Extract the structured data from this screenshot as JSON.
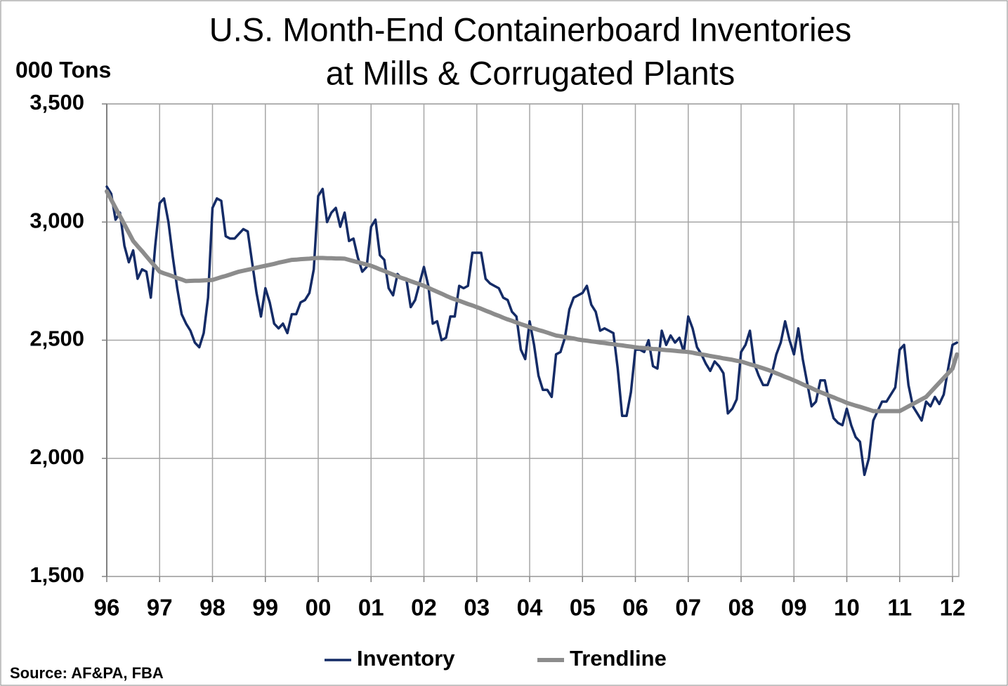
{
  "chart_data": {
    "type": "line",
    "title": [
      "U.S. Month-End Containerboard Inventories",
      "at Mills & Corrugated Plants"
    ],
    "y_label": "000 Tons",
    "source": "Source: AF&PA, FBA",
    "categories": [
      "96",
      null,
      null,
      null,
      null,
      null,
      null,
      null,
      null,
      null,
      null,
      null,
      "97",
      null,
      null,
      null,
      null,
      null,
      null,
      null,
      null,
      null,
      null,
      null,
      "98",
      null,
      null,
      null,
      null,
      null,
      null,
      null,
      null,
      null,
      null,
      null,
      "99",
      null,
      null,
      null,
      null,
      null,
      null,
      null,
      null,
      null,
      null,
      null,
      "00",
      null,
      null,
      null,
      null,
      null,
      null,
      null,
      null,
      null,
      null,
      null,
      "01",
      null,
      null,
      null,
      null,
      null,
      null,
      null,
      null,
      null,
      null,
      null,
      "02",
      null,
      null,
      null,
      null,
      null,
      null,
      null,
      null,
      null,
      null,
      null,
      "03",
      null,
      null,
      null,
      null,
      null,
      null,
      null,
      null,
      null,
      null,
      null,
      "04",
      null,
      null,
      null,
      null,
      null,
      null,
      null,
      null,
      null,
      null,
      null,
      "05",
      null,
      null,
      null,
      null,
      null,
      null,
      null,
      null,
      null,
      null,
      null,
      "06",
      null,
      null,
      null,
      null,
      null,
      null,
      null,
      null,
      null,
      null,
      null,
      "07",
      null,
      null,
      null,
      null,
      null,
      null,
      null,
      null,
      null,
      null,
      null,
      "08",
      null,
      null,
      null,
      null,
      null,
      null,
      null,
      null,
      null,
      null,
      null,
      "09",
      null,
      null,
      null,
      null,
      null,
      null,
      null,
      null,
      null,
      null,
      null,
      "10",
      null,
      null,
      null,
      null,
      null,
      null,
      null,
      null,
      null,
      null,
      null,
      "11",
      null,
      null,
      null,
      null,
      null,
      null,
      null,
      null,
      null,
      null,
      null,
      "12",
      null
    ],
    "series": [
      {
        "name": "Inventory",
        "color": "#142b66",
        "width": 3.5,
        "values": [
          3150,
          3120,
          3010,
          3040,
          2900,
          2830,
          2880,
          2760,
          2800,
          2790,
          2680,
          2900,
          3080,
          3100,
          3000,
          2850,
          2720,
          2610,
          2570,
          2540,
          2490,
          2470,
          2530,
          2680,
          3060,
          3100,
          3090,
          2940,
          2930,
          2930,
          2950,
          2970,
          2960,
          2830,
          2700,
          2600,
          2720,
          2660,
          2570,
          2550,
          2570,
          2530,
          2610,
          2610,
          2660,
          2670,
          2700,
          2800,
          3110,
          3140,
          3000,
          3040,
          3060,
          2980,
          3040,
          2920,
          2930,
          2850,
          2790,
          2810,
          2980,
          3010,
          2860,
          2840,
          2720,
          2690,
          2780,
          2760,
          2760,
          2640,
          2670,
          2740,
          2810,
          2730,
          2570,
          2580,
          2500,
          2510,
          2600,
          2600,
          2730,
          2720,
          2730,
          2870,
          2870,
          2870,
          2760,
          2740,
          2730,
          2720,
          2680,
          2670,
          2620,
          2600,
          2460,
          2420,
          2580,
          2480,
          2350,
          2290,
          2290,
          2260,
          2440,
          2450,
          2510,
          2630,
          2680,
          2690,
          2700,
          2730,
          2650,
          2620,
          2540,
          2550,
          2540,
          2530,
          2380,
          2180,
          2180,
          2280,
          2460,
          2460,
          2450,
          2500,
          2390,
          2380,
          2540,
          2480,
          2520,
          2490,
          2510,
          2450,
          2600,
          2550,
          2470,
          2440,
          2400,
          2370,
          2410,
          2390,
          2360,
          2190,
          2210,
          2250,
          2450,
          2480,
          2540,
          2400,
          2350,
          2310,
          2310,
          2360,
          2440,
          2490,
          2580,
          2500,
          2440,
          2550,
          2420,
          2320,
          2220,
          2240,
          2330,
          2330,
          2240,
          2170,
          2150,
          2140,
          2210,
          2140,
          2090,
          2070,
          1930,
          2000,
          2160,
          2200,
          2240,
          2240,
          2270,
          2300,
          2460,
          2480,
          2310,
          2220,
          2190,
          2160,
          2240,
          2220,
          2260,
          2230,
          2270,
          2380,
          2480,
          2490
        ]
      },
      {
        "name": "Trendline",
        "color": "#8c8c8c",
        "width": 6,
        "values": [
          3130,
          3095,
          3060,
          3025,
          2990,
          2955,
          2920,
          2898,
          2877,
          2855,
          2833,
          2812,
          2790,
          2783,
          2777,
          2770,
          2763,
          2757,
          2750,
          2751,
          2752,
          2752,
          2753,
          2754,
          2755,
          2761,
          2767,
          2772,
          2778,
          2784,
          2790,
          2794,
          2798,
          2802,
          2807,
          2811,
          2815,
          2819,
          2823,
          2828,
          2832,
          2836,
          2840,
          2841,
          2843,
          2844,
          2845,
          2847,
          2848,
          2848,
          2847,
          2847,
          2846,
          2846,
          2845,
          2840,
          2835,
          2830,
          2825,
          2820,
          2815,
          2808,
          2800,
          2793,
          2785,
          2778,
          2770,
          2763,
          2757,
          2750,
          2743,
          2737,
          2730,
          2722,
          2713,
          2705,
          2697,
          2688,
          2680,
          2673,
          2667,
          2660,
          2653,
          2647,
          2640,
          2633,
          2625,
          2618,
          2610,
          2603,
          2595,
          2588,
          2582,
          2575,
          2568,
          2562,
          2555,
          2549,
          2543,
          2538,
          2532,
          2526,
          2520,
          2517,
          2513,
          2510,
          2507,
          2503,
          2500,
          2498,
          2495,
          2493,
          2490,
          2488,
          2485,
          2483,
          2480,
          2478,
          2475,
          2473,
          2470,
          2468,
          2467,
          2465,
          2463,
          2462,
          2460,
          2458,
          2457,
          2455,
          2453,
          2452,
          2450,
          2447,
          2443,
          2440,
          2437,
          2433,
          2430,
          2427,
          2423,
          2420,
          2417,
          2413,
          2410,
          2404,
          2398,
          2393,
          2387,
          2381,
          2375,
          2368,
          2360,
          2353,
          2345,
          2338,
          2330,
          2322,
          2313,
          2305,
          2297,
          2288,
          2280,
          2273,
          2265,
          2258,
          2250,
          2243,
          2235,
          2229,
          2223,
          2218,
          2212,
          2206,
          2200,
          2200,
          2200,
          2200,
          2200,
          2200,
          2200,
          2210,
          2220,
          2230,
          2240,
          2250,
          2260,
          2280,
          2300,
          2320,
          2340,
          2360,
          2380,
          2440
        ]
      }
    ],
    "ylim": [
      1500,
      3500
    ],
    "yticks": [
      {
        "value": 1500,
        "label": "1,500"
      },
      {
        "value": 2000,
        "label": "2,000"
      },
      {
        "value": 2500,
        "label": "2,500"
      },
      {
        "value": 3000,
        "label": "3,000"
      },
      {
        "value": 3500,
        "label": "3,500"
      }
    ],
    "grid": true
  }
}
